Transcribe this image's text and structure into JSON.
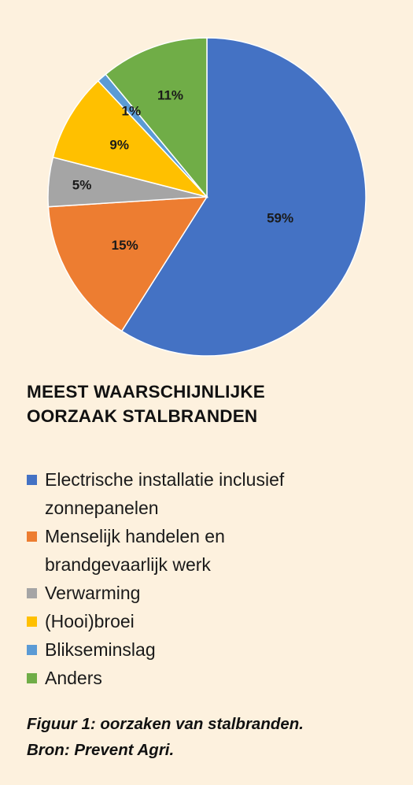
{
  "chart_data": {
    "type": "pie",
    "title": "MEEST WAARSCHIJNLIJKE OORZAAK STALBRANDEN",
    "title_lines": [
      "MEEST WAARSCHIJNLIJKE",
      "OORZAAK STALBRANDEN"
    ],
    "start_angle": "12 o'clock",
    "direction": "clockwise",
    "slices": [
      {
        "label": "Electrische installatie inclusief zonnepanelen",
        "value": 59,
        "display": "59%",
        "color": "#4472c4"
      },
      {
        "label": "Menselijk handelen en brandgevaarlijk werk",
        "value": 15,
        "display": "15%",
        "color": "#ed7d31"
      },
      {
        "label": "Verwarming",
        "value": 5,
        "display": "5%",
        "color": "#a5a5a5"
      },
      {
        "label": "(Hooi)broei",
        "value": 9,
        "display": "9%",
        "color": "#ffc000"
      },
      {
        "label": "Blikseminslag",
        "value": 1,
        "display": "1%",
        "color": "#5b9bd5"
      },
      {
        "label": "Anders",
        "value": 11,
        "display": "11%",
        "color": "#70ad47"
      }
    ],
    "legend": {
      "placement": "below",
      "entries": [
        {
          "lines": [
            "Electrische installatie inclusief",
            "zonnepanelen"
          ],
          "color": "#4472c4"
        },
        {
          "lines": [
            "Menselijk handelen en",
            "brandgevaarlijk werk"
          ],
          "color": "#ed7d31"
        },
        {
          "lines": [
            "Verwarming"
          ],
          "color": "#a5a5a5"
        },
        {
          "lines": [
            "(Hooi)broei"
          ],
          "color": "#ffc000"
        },
        {
          "lines": [
            "Blikseminslag"
          ],
          "color": "#5b9bd5"
        },
        {
          "lines": [
            "Anders"
          ],
          "color": "#70ad47"
        }
      ]
    }
  },
  "caption": {
    "line1": "Figuur 1: oorzaken van stalbranden.",
    "line2": "Bron: Prevent Agri."
  },
  "colors": {
    "background": "#fdf1de",
    "text": "#111111"
  }
}
